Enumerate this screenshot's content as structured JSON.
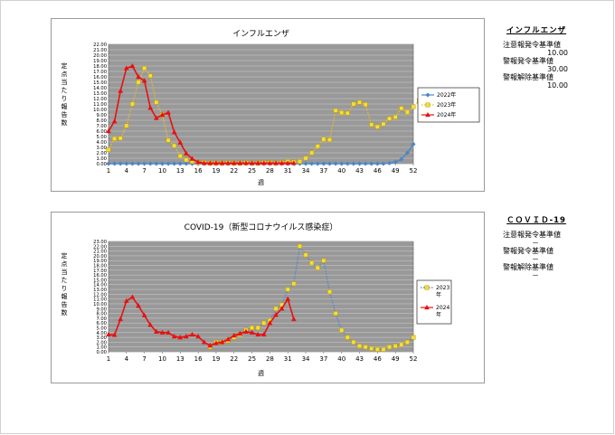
{
  "chart_data": [
    {
      "type": "line",
      "title": "インフルエンザ",
      "xlabel": "週",
      "ylabel": "定点当たり報告数",
      "x_ticks": [
        1,
        4,
        7,
        10,
        13,
        16,
        19,
        22,
        25,
        28,
        31,
        34,
        37,
        40,
        43,
        46,
        49,
        52
      ],
      "y_ticks": [
        "0.00",
        "1.00",
        "2.00",
        "3.00",
        "4.00",
        "5.00",
        "6.00",
        "7.00",
        "8.00",
        "9.00",
        "10.00",
        "11.00",
        "12.00",
        "13.00",
        "14.00",
        "15.00",
        "16.00",
        "17.00",
        "18.00",
        "19.00",
        "20.00",
        "21.00",
        "22.00"
      ],
      "ylim": [
        0,
        22
      ],
      "xlim": [
        1,
        52
      ],
      "grid": true,
      "legend": "right",
      "series": [
        {
          "name": "2022年",
          "color": "#4a86c8",
          "style": "solid-diamond",
          "values": [
            0.0,
            0.0,
            0.0,
            0.0,
            0.0,
            0.0,
            0.0,
            0.0,
            0.0,
            0.0,
            0.0,
            0.0,
            0.0,
            0.0,
            0.0,
            0.0,
            0.0,
            0.0,
            0.0,
            0.0,
            0.0,
            0.0,
            0.0,
            0.0,
            0.0,
            0.0,
            0.0,
            0.0,
            0.0,
            0.0,
            0.0,
            0.0,
            0.0,
            0.0,
            0.0,
            0.0,
            0.0,
            0.0,
            0.0,
            0.0,
            0.0,
            0.0,
            0.0,
            0.0,
            0.0,
            0.0,
            0.0,
            0.1,
            0.3,
            0.8,
            2.0,
            3.6
          ]
        },
        {
          "name": "2023年",
          "color": "#f0c020",
          "style": "dotted-square",
          "values": [
            2.6,
            4.6,
            4.7,
            7.0,
            11.0,
            15.0,
            17.6,
            16.2,
            11.3,
            9.0,
            4.3,
            3.3,
            1.4,
            0.7,
            0.4,
            0.2,
            0.2,
            0.1,
            0.1,
            0.1,
            0.2,
            0.1,
            0.1,
            0.2,
            0.1,
            0.1,
            0.2,
            0.2,
            0.1,
            0.2,
            0.4,
            0.3,
            0.4,
            1.0,
            2.0,
            3.2,
            4.5,
            4.4,
            9.8,
            9.4,
            9.3,
            11.0,
            11.3,
            10.9,
            7.2,
            6.8,
            7.3,
            8.3,
            8.6,
            10.2,
            9.5,
            10.5,
            11.6
          ]
        },
        {
          "name": "2024年",
          "color": "#e81010",
          "style": "solid-triangle",
          "values": [
            6.0,
            7.8,
            13.4,
            17.6,
            18.0,
            16.0,
            15.3,
            10.3,
            8.4,
            9.0,
            9.4,
            5.8,
            3.9,
            1.9,
            0.9,
            0.3,
            0.1,
            0.1,
            0.1,
            0.1,
            0.1,
            0.1,
            0.1,
            0.1,
            0.1,
            0.1,
            0.1,
            0.1,
            0.1,
            0.1,
            0.1,
            0.1
          ]
        }
      ]
    },
    {
      "type": "line",
      "title": "COVID-19（新型コロナウイルス感染症）",
      "xlabel": "週",
      "ylabel": "定点当たり報告数",
      "x_ticks": [
        1,
        4,
        7,
        10,
        13,
        16,
        19,
        22,
        25,
        28,
        31,
        34,
        37,
        40,
        43,
        46,
        49,
        52
      ],
      "y_ticks": [
        "0.00",
        "1.00",
        "2.00",
        "3.00",
        "4.00",
        "5.00",
        "6.00",
        "7.00",
        "8.00",
        "9.00",
        "10.00",
        "11.00",
        "12.00",
        "13.00",
        "14.00",
        "15.00",
        "16.00",
        "17.00",
        "18.00",
        "19.00",
        "20.00",
        "21.00",
        "22.00",
        "23.00"
      ],
      "ylim": [
        0,
        23
      ],
      "xlim": [
        1,
        52
      ],
      "grid": true,
      "legend": "right",
      "series": [
        {
          "name": "2023\n年",
          "color": "#f0c020",
          "line_color": "#4a86c8",
          "style": "dotted-square",
          "values": [
            null,
            null,
            null,
            null,
            null,
            null,
            null,
            null,
            null,
            null,
            null,
            null,
            null,
            null,
            null,
            null,
            null,
            1.0,
            2.0,
            2.0,
            2.3,
            3.0,
            3.6,
            4.5,
            5.0,
            5.0,
            6.0,
            6.5,
            9.0,
            9.8,
            13.0,
            14.2,
            22.0,
            20.2,
            18.5,
            17.5,
            19.0,
            12.5,
            8.0,
            4.5,
            3.0,
            2.0,
            1.2,
            1.0,
            0.7,
            0.5,
            0.5,
            1.0,
            1.2,
            1.5,
            2.0,
            3.0
          ]
        },
        {
          "name": "2024\n年",
          "color": "#e81010",
          "style": "solid-triangle",
          "values": [
            3.6,
            3.5,
            6.8,
            10.6,
            11.4,
            9.6,
            7.6,
            5.6,
            4.2,
            4.0,
            4.0,
            3.2,
            3.0,
            3.2,
            3.6,
            3.2,
            2.0,
            1.3,
            1.8,
            2.0,
            2.6,
            3.4,
            3.8,
            4.2,
            4.0,
            3.6,
            3.6,
            6.0,
            7.7,
            9.0,
            11.0,
            6.8
          ]
        }
      ]
    }
  ],
  "sidebar": {
    "flu": {
      "title": "インフルエンザ",
      "attention_label": "注意報発令基準値",
      "attention_value": "10.00",
      "warning_label": "警報発令基準値",
      "warning_value": "30.00",
      "release_label": "警報解除基準値",
      "release_value": "10.00"
    },
    "covid": {
      "title": "ＣＯＶＩＤ-19",
      "attention_label": "注意報発令基準値",
      "attention_value": "－",
      "warning_label": "警報発令基準値",
      "warning_value": "－",
      "release_label": "警報解除基準値",
      "release_value": "－"
    }
  }
}
